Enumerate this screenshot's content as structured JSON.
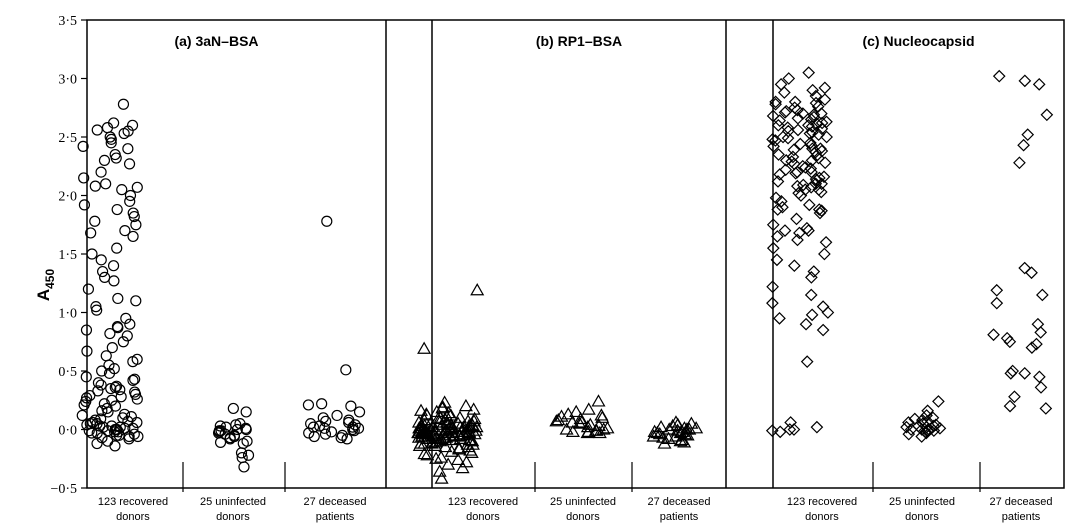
{
  "chart_data": {
    "type": "scatter",
    "ylabel": "A",
    "ylabel_sub": "450",
    "ylim": [
      -0.5,
      3.5
    ],
    "yticks": [
      -0.5,
      0.0,
      0.5,
      1.0,
      1.5,
      2.0,
      2.5,
      3.0,
      3.5
    ],
    "ytick_labels": [
      "−0·5",
      "0·0",
      "0·5",
      "1·0",
      "1·5",
      "2·0",
      "2·5",
      "3·0",
      "3·5"
    ],
    "grid": false,
    "panels": [
      {
        "title": "(a) 3aN–BSA",
        "marker": "circle",
        "groups": [
          {
            "label_line1": "123 recovered",
            "label_line2": "donors",
            "values": [
              2.78,
              2.62,
              2.58,
              2.56,
              2.55,
              2.53,
              2.5,
              2.48,
              2.45,
              2.42,
              2.35,
              2.32,
              2.3,
              2.27,
              2.2,
              2.1,
              2.08,
              2.07,
              2.05,
              2.0,
              1.95,
              1.92,
              1.88,
              1.82,
              1.78,
              1.7,
              1.68,
              1.65,
              1.5,
              1.45,
              1.4,
              1.35,
              1.3,
              1.27,
              1.2,
              1.12,
              1.1,
              1.05,
              1.02,
              0.95,
              0.9,
              0.87,
              0.85,
              0.82,
              0.8,
              0.75,
              0.67,
              0.63,
              0.6,
              0.58,
              0.55,
              0.5,
              0.48,
              0.45,
              0.42,
              0.4,
              0.38,
              0.37,
              0.36,
              0.35,
              0.33,
              0.32,
              0.3,
              0.29,
              0.28,
              0.27,
              0.26,
              0.25,
              0.22,
              0.2,
              0.18,
              0.15,
              0.12,
              0.1,
              0.09,
              0.08,
              0.07,
              0.06,
              0.05,
              0.04,
              0.03,
              0.02,
              0.02,
              0.01,
              0.0,
              0.0,
              -0.01,
              -0.01,
              -0.02,
              -0.03,
              -0.03,
              -0.04,
              -0.05,
              -0.05,
              -0.06,
              -0.07,
              -0.08,
              -0.1,
              -0.12,
              -0.14,
              0.21,
              0.16,
              0.11,
              0.06,
              0.01,
              -0.02,
              0.13,
              0.24,
              0.34,
              0.43,
              0.52,
              0.7,
              0.88,
              1.55,
              1.75,
              1.85,
              2.15,
              2.4,
              2.6,
              0.03,
              0.05,
              -0.06,
              0.0
            ]
          },
          {
            "label_line1": "25 uninfected",
            "label_line2": "donors",
            "values": [
              0.18,
              0.15,
              0.05,
              0.03,
              0.02,
              0.01,
              0.0,
              0.0,
              -0.01,
              -0.01,
              -0.02,
              -0.03,
              -0.04,
              -0.05,
              -0.06,
              -0.07,
              -0.08,
              -0.1,
              -0.11,
              -0.12,
              -0.2,
              -0.22,
              -0.24,
              -0.32,
              0.04
            ]
          },
          {
            "label_line1": "27 deceased",
            "label_line2": "patients",
            "values": [
              1.78,
              0.51,
              0.22,
              0.21,
              0.2,
              0.15,
              0.12,
              0.1,
              0.08,
              0.07,
              0.06,
              0.05,
              0.04,
              0.03,
              0.02,
              0.01,
              0.0,
              -0.01,
              -0.02,
              -0.03,
              -0.04,
              -0.05,
              -0.06,
              -0.07,
              -0.08,
              0.02,
              0.01
            ]
          }
        ]
      },
      {
        "title": "(b) RP1–BSA",
        "marker": "triangle",
        "groups": [
          {
            "label_line1": "123 recovered",
            "label_line2": "donors",
            "values": [
              1.19,
              0.69,
              0.23,
              0.2,
              0.18,
              0.15,
              0.12,
              0.1,
              0.08,
              0.06,
              0.05,
              0.04,
              0.03,
              0.02,
              0.01,
              0.0,
              0.0,
              -0.01,
              -0.01,
              -0.02,
              -0.02,
              -0.03,
              -0.03,
              -0.04,
              -0.04,
              -0.05,
              -0.05,
              -0.06,
              -0.06,
              -0.07,
              -0.07,
              -0.08,
              -0.08,
              -0.09,
              -0.1,
              -0.11,
              -0.12,
              -0.13,
              -0.15,
              -0.17,
              -0.2,
              -0.22,
              -0.25,
              -0.28,
              -0.33,
              -0.36,
              -0.42,
              0.02,
              0.01,
              0.0,
              -0.01,
              -0.02,
              -0.03,
              -0.04,
              -0.05,
              -0.06,
              0.03,
              0.04,
              0.05,
              -0.07,
              -0.08,
              -0.09,
              0.0,
              0.01,
              -0.02,
              -0.04,
              -0.06,
              0.02,
              0.06,
              0.09,
              -0.1,
              -0.12,
              -0.14,
              0.07,
              0.11,
              -0.16,
              -0.18,
              0.13,
              0.16,
              0.19,
              -0.03,
              -0.05,
              0.0,
              0.01,
              0.02,
              -0.01,
              -0.02,
              0.03,
              0.04,
              -0.03,
              -0.04,
              -0.05,
              0.05,
              -0.06,
              -0.07,
              0.06,
              0.07,
              -0.08,
              -0.09,
              -0.1,
              0.08,
              0.09,
              -0.11,
              -0.12,
              0.1,
              -0.13,
              -0.14,
              0.12,
              -0.15,
              -0.19,
              -0.21,
              -0.24,
              0.14,
              0.17,
              -0.26,
              -0.3,
              0.0,
              0.01,
              -0.01,
              0.02,
              -0.02,
              0.03,
              -0.03
            ]
          },
          {
            "label_line1": "25 uninfected",
            "label_line2": "donors",
            "values": [
              0.24,
              0.17,
              0.15,
              0.13,
              0.12,
              0.1,
              0.09,
              0.08,
              0.07,
              0.06,
              0.05,
              0.04,
              0.03,
              0.02,
              0.01,
              0.0,
              0.0,
              -0.01,
              -0.01,
              -0.02,
              -0.02,
              -0.03,
              -0.03,
              0.11,
              0.06
            ]
          },
          {
            "label_line1": "27 deceased",
            "label_line2": "patients",
            "values": [
              0.06,
              0.05,
              0.04,
              0.03,
              0.02,
              0.01,
              0.0,
              0.0,
              -0.01,
              -0.02,
              -0.03,
              -0.04,
              -0.05,
              -0.06,
              -0.07,
              -0.08,
              -0.09,
              -0.1,
              -0.11,
              -0.12,
              -0.02,
              -0.03,
              -0.04,
              -0.05,
              -0.06,
              0.01,
              0.0
            ]
          }
        ]
      },
      {
        "title": "(c) Nucleocapsid",
        "marker": "diamond",
        "groups": [
          {
            "label_line1": "123 recovered",
            "label_line2": "donors",
            "values": [
              3.05,
              3.0,
              2.95,
              2.92,
              2.9,
              2.88,
              2.85,
              2.82,
              2.8,
              2.8,
              2.78,
              2.76,
              2.75,
              2.73,
              2.72,
              2.7,
              2.7,
              2.68,
              2.66,
              2.65,
              2.64,
              2.62,
              2.6,
              2.6,
              2.58,
              2.57,
              2.56,
              2.55,
              2.54,
              2.52,
              2.5,
              2.5,
              2.48,
              2.47,
              2.45,
              2.44,
              2.42,
              2.4,
              2.4,
              2.38,
              2.37,
              2.35,
              2.34,
              2.32,
              2.3,
              2.3,
              2.28,
              2.27,
              2.25,
              2.24,
              2.22,
              2.2,
              2.2,
              2.18,
              2.16,
              2.15,
              2.14,
              2.12,
              2.1,
              2.1,
              2.09,
              2.08,
              2.07,
              2.05,
              2.05,
              2.02,
              2.0,
              1.98,
              1.95,
              1.92,
              1.9,
              1.88,
              1.88,
              1.87,
              1.85,
              1.8,
              1.75,
              1.72,
              1.7,
              1.7,
              1.68,
              1.65,
              1.62,
              1.6,
              1.55,
              1.5,
              1.45,
              1.4,
              1.35,
              1.3,
              1.22,
              1.15,
              1.08,
              1.05,
              1.0,
              0.98,
              0.95,
              0.9,
              0.85,
              0.58,
              0.06,
              0.02,
              0.0,
              0.0,
              -0.01,
              -0.02,
              2.63,
              2.67,
              2.71,
              2.53,
              2.43,
              2.33,
              2.23,
              2.13,
              2.03,
              2.79,
              2.61,
              2.49,
              2.39,
              2.29,
              2.19,
              2.59,
              2.69
            ]
          },
          {
            "label_line1": "25 uninfected",
            "label_line2": "donors",
            "values": [
              0.24,
              0.16,
              0.12,
              0.1,
              0.08,
              0.07,
              0.06,
              0.05,
              0.04,
              0.03,
              0.02,
              0.02,
              0.01,
              0.01,
              0.0,
              0.0,
              -0.01,
              -0.01,
              -0.02,
              -0.03,
              -0.04,
              -0.06,
              0.09,
              0.03,
              0.0
            ]
          },
          {
            "label_line1": "27 deceased",
            "label_line2": "patients",
            "values": [
              3.02,
              2.98,
              2.95,
              2.69,
              2.52,
              2.43,
              2.28,
              1.38,
              1.34,
              1.19,
              1.15,
              1.08,
              0.9,
              0.83,
              0.81,
              0.78,
              0.75,
              0.73,
              0.7,
              0.5,
              0.48,
              0.45,
              0.36,
              0.28,
              0.2,
              0.18,
              0.48
            ]
          }
        ]
      }
    ]
  }
}
